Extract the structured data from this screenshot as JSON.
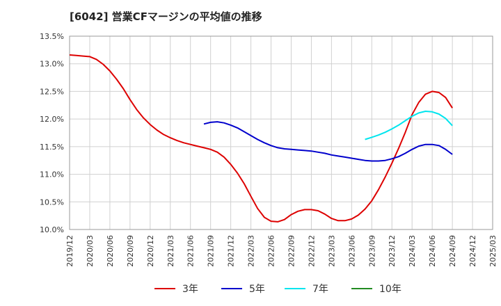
{
  "chart_data": {
    "type": "line",
    "title": "[6042]  営業CFマージンの平均値の推移",
    "xlabel": "",
    "ylabel": "",
    "ylim": [
      10.0,
      13.5
    ],
    "y_ticks": [
      "10.0%",
      "10.5%",
      "11.0%",
      "11.5%",
      "12.0%",
      "12.5%",
      "13.0%",
      "13.5%"
    ],
    "x_ticks": [
      "2019/12",
      "2020/03",
      "2020/06",
      "2020/09",
      "2020/12",
      "2021/03",
      "2021/06",
      "2021/09",
      "2021/12",
      "2022/03",
      "2022/06",
      "2022/09",
      "2022/12",
      "2023/03",
      "2023/06",
      "2023/09",
      "2023/12",
      "2024/03",
      "2024/06",
      "2024/09",
      "2024/12",
      "2025/03"
    ],
    "grid": true,
    "legend_position": "bottom",
    "series": [
      {
        "name": "3年",
        "color": "#dd0000",
        "x": [
          "2019/12",
          "2020/01",
          "2020/02",
          "2020/03",
          "2020/04",
          "2020/05",
          "2020/06",
          "2020/07",
          "2020/08",
          "2020/09",
          "2020/10",
          "2020/11",
          "2020/12",
          "2021/01",
          "2021/02",
          "2021/03",
          "2021/04",
          "2021/05",
          "2021/06",
          "2021/07",
          "2021/08",
          "2021/09",
          "2021/10",
          "2021/11",
          "2021/12",
          "2022/01",
          "2022/02",
          "2022/03",
          "2022/04",
          "2022/05",
          "2022/06",
          "2022/07",
          "2022/08",
          "2022/09",
          "2022/10",
          "2022/11",
          "2022/12",
          "2023/01",
          "2023/02",
          "2023/03",
          "2023/04",
          "2023/05",
          "2023/06",
          "2023/07",
          "2023/08",
          "2023/09",
          "2023/10",
          "2023/11",
          "2023/12",
          "2024/01",
          "2024/02",
          "2024/03",
          "2024/04",
          "2024/05",
          "2024/06",
          "2024/07",
          "2024/08",
          "2024/09"
        ],
        "values": [
          13.16,
          13.15,
          13.14,
          13.13,
          13.08,
          12.99,
          12.87,
          12.72,
          12.55,
          12.35,
          12.17,
          12.02,
          11.9,
          11.8,
          11.72,
          11.66,
          11.61,
          11.57,
          11.54,
          11.51,
          11.48,
          11.45,
          11.4,
          11.31,
          11.18,
          11.02,
          10.83,
          10.6,
          10.38,
          10.22,
          10.15,
          10.14,
          10.18,
          10.27,
          10.33,
          10.36,
          10.36,
          10.34,
          10.28,
          10.2,
          10.16,
          10.16,
          10.19,
          10.26,
          10.37,
          10.52,
          10.72,
          10.95,
          11.2,
          11.47,
          11.76,
          12.08,
          12.3,
          12.45,
          12.5,
          12.48,
          12.39,
          12.2
        ]
      },
      {
        "name": "5年",
        "color": "#0000cc",
        "x": [
          "2021/08",
          "2021/09",
          "2021/10",
          "2021/11",
          "2021/12",
          "2022/01",
          "2022/02",
          "2022/03",
          "2022/04",
          "2022/05",
          "2022/06",
          "2022/07",
          "2022/08",
          "2022/09",
          "2022/10",
          "2022/11",
          "2022/12",
          "2023/01",
          "2023/02",
          "2023/03",
          "2023/04",
          "2023/05",
          "2023/06",
          "2023/07",
          "2023/08",
          "2023/09",
          "2023/10",
          "2023/11",
          "2023/12",
          "2024/01",
          "2024/02",
          "2024/03",
          "2024/04",
          "2024/05",
          "2024/06",
          "2024/07",
          "2024/08",
          "2024/09"
        ],
        "values": [
          11.91,
          11.94,
          11.95,
          11.93,
          11.89,
          11.84,
          11.77,
          11.7,
          11.63,
          11.57,
          11.52,
          11.48,
          11.46,
          11.45,
          11.44,
          11.43,
          11.42,
          11.4,
          11.38,
          11.35,
          11.33,
          11.31,
          11.29,
          11.27,
          11.25,
          11.24,
          11.24,
          11.25,
          11.28,
          11.32,
          11.38,
          11.45,
          11.51,
          11.54,
          11.54,
          11.52,
          11.45,
          11.36
        ]
      },
      {
        "name": "7年",
        "color": "#00e5ee",
        "x": [
          "2023/08",
          "2023/09",
          "2023/10",
          "2023/11",
          "2023/12",
          "2024/01",
          "2024/02",
          "2024/03",
          "2024/04",
          "2024/05",
          "2024/06",
          "2024/07",
          "2024/08",
          "2024/09"
        ],
        "values": [
          11.63,
          11.67,
          11.71,
          11.76,
          11.82,
          11.89,
          11.97,
          12.05,
          12.11,
          12.14,
          12.13,
          12.09,
          12.01,
          11.88
        ]
      },
      {
        "name": "10年",
        "color": "#228b22",
        "x": [],
        "values": []
      }
    ]
  }
}
